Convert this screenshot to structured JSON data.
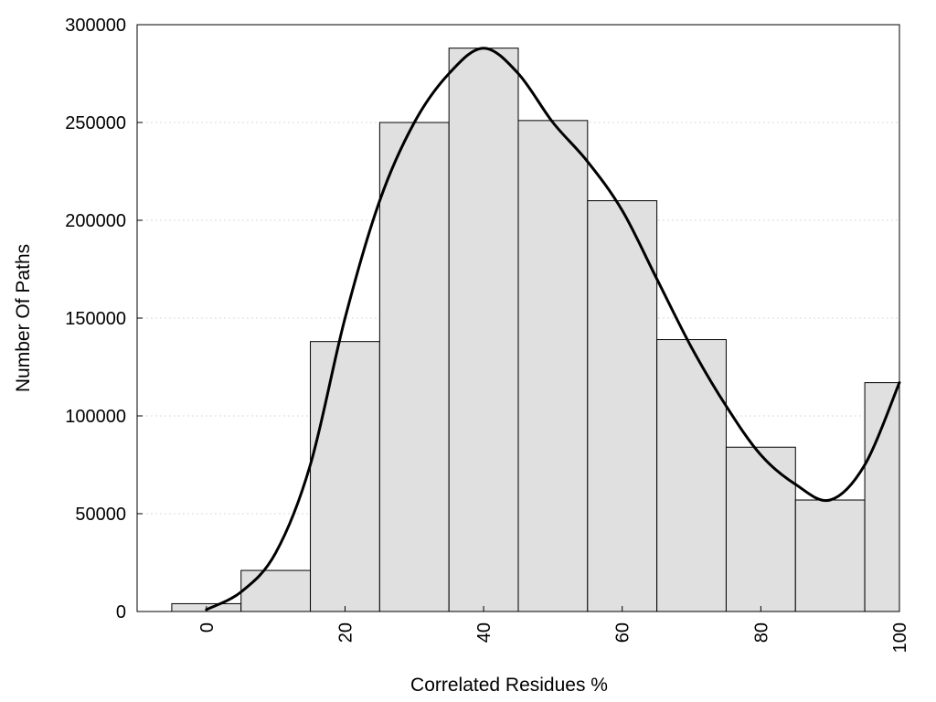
{
  "chart_data": {
    "type": "bar",
    "xlabel": "Correlated Residues %",
    "ylabel": "Number Of Paths",
    "xlim": [
      -10,
      100
    ],
    "ylim": [
      0,
      300000
    ],
    "x_ticks": [
      "0",
      "20",
      "40",
      "60",
      "80",
      "100"
    ],
    "y_ticks": [
      "0",
      "50000",
      "100000",
      "150000",
      "200000",
      "250000",
      "300000"
    ],
    "grid": "horizontal-dotted",
    "bin_width": 10,
    "bins": [
      {
        "center": 0,
        "value": 4000
      },
      {
        "center": 10,
        "value": 21000
      },
      {
        "center": 20,
        "value": 138000
      },
      {
        "center": 30,
        "value": 250000
      },
      {
        "center": 40,
        "value": 288000
      },
      {
        "center": 50,
        "value": 251000
      },
      {
        "center": 60,
        "value": 210000
      },
      {
        "center": 70,
        "value": 139000
      },
      {
        "center": 80,
        "value": 84000
      },
      {
        "center": 90,
        "value": 57000
      },
      {
        "center": 100,
        "value": 117000
      }
    ],
    "curve": {
      "type": "line",
      "x": [
        0,
        5,
        10,
        15,
        20,
        25,
        30,
        35,
        40,
        45,
        50,
        55,
        60,
        65,
        70,
        75,
        80,
        85,
        90,
        95,
        100
      ],
      "y": [
        1000,
        10000,
        30000,
        75000,
        150000,
        210000,
        250000,
        275000,
        288000,
        275000,
        250000,
        230000,
        205000,
        170000,
        135000,
        105000,
        80000,
        65000,
        57000,
        75000,
        117000
      ]
    }
  }
}
